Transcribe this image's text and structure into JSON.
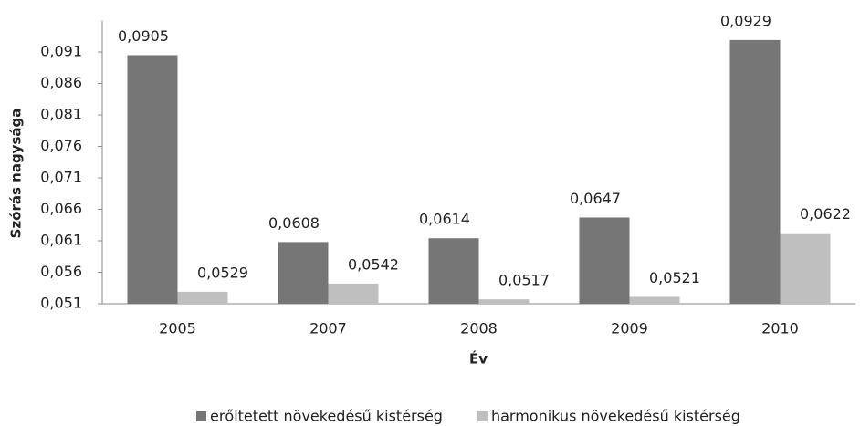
{
  "chart_data": {
    "type": "bar",
    "y_label": "Szórás nagysága",
    "x_label": "Év",
    "categories": [
      "2005",
      "2007",
      "2008",
      "2009",
      "2010"
    ],
    "series": [
      {
        "name": "erőltetett növekedésű kistérség",
        "color": "#767676",
        "values": [
          0.0905,
          0.0608,
          0.0614,
          0.0647,
          0.0929
        ],
        "value_labels": [
          "0,0905",
          "0,0608",
          "0,0614",
          "0,0647",
          "0,0929"
        ]
      },
      {
        "name": "harmonikus növekedésű kistérség",
        "color": "#bfbfbf",
        "values": [
          0.0529,
          0.0542,
          0.0517,
          0.0521,
          0.0622
        ],
        "value_labels": [
          "0,0529",
          "0,0542",
          "0,0517",
          "0,0521",
          "0,0622"
        ]
      }
    ],
    "ylim": [
      0.051,
      0.096
    ],
    "yticks": [
      {
        "value": 0.051,
        "label": "0,051"
      },
      {
        "value": 0.056,
        "label": "0,056"
      },
      {
        "value": 0.061,
        "label": "0,061"
      },
      {
        "value": 0.066,
        "label": "0,066"
      },
      {
        "value": 0.071,
        "label": "0,071"
      },
      {
        "value": 0.076,
        "label": "0,076"
      },
      {
        "value": 0.081,
        "label": "0,081"
      },
      {
        "value": 0.086,
        "label": "0,086"
      },
      {
        "value": 0.091,
        "label": "0,091"
      }
    ],
    "grid": false,
    "legend": "bottom"
  }
}
